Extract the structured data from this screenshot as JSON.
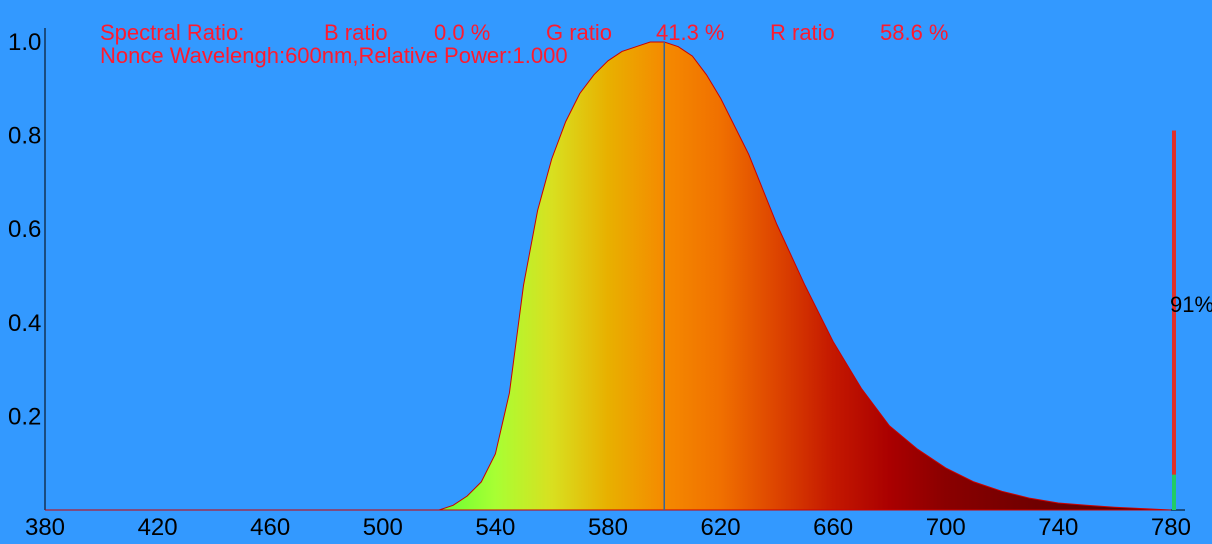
{
  "header": {
    "spectral_label": "Spectral Ratio:",
    "b_label": "B ratio",
    "b_value": "0.0 %",
    "g_label": "G ratio",
    "g_value": "41.3 %",
    "r_label": "R ratio",
    "r_value": "58.6 %",
    "line2": "Nonce Wavelengh:600nm,Relative Power:1.000"
  },
  "colors": {
    "background": "#3399ff",
    "header_text": "#ff1a2e",
    "curve_outline": "#cc0000",
    "marker_line": "#336699",
    "side_bar_red": "#e0302a",
    "side_bar_green": "#22cc66"
  },
  "side_bar": {
    "label": "91%",
    "level": 0.91,
    "green_level": 0.08
  },
  "chart_data": {
    "type": "area",
    "xlim": [
      380,
      785
    ],
    "ylim": [
      0,
      1.03
    ],
    "xticks": [
      "380",
      "420",
      "460",
      "500",
      "540",
      "580",
      "620",
      "660",
      "700",
      "740",
      "780"
    ],
    "yticks": [
      "0.2",
      "0.4",
      "0.6",
      "0.8",
      "1.0"
    ],
    "xtick_values": [
      380,
      420,
      460,
      500,
      540,
      580,
      620,
      660,
      700,
      740,
      780
    ],
    "ytick_values": [
      0.2,
      0.4,
      0.6,
      0.8,
      1.0
    ],
    "peak_wavelength": 600,
    "peak_power": 1.0,
    "x": [
      380,
      500,
      520,
      525,
      530,
      535,
      540,
      545,
      550,
      555,
      560,
      565,
      570,
      575,
      580,
      585,
      590,
      595,
      600,
      605,
      610,
      615,
      620,
      630,
      640,
      650,
      660,
      670,
      680,
      690,
      700,
      710,
      720,
      730,
      740,
      750,
      760,
      770,
      780
    ],
    "y": [
      0,
      0,
      0.0,
      0.01,
      0.03,
      0.06,
      0.12,
      0.25,
      0.48,
      0.64,
      0.75,
      0.83,
      0.89,
      0.93,
      0.96,
      0.98,
      0.99,
      1.0,
      1.0,
      0.99,
      0.97,
      0.93,
      0.88,
      0.76,
      0.61,
      0.48,
      0.36,
      0.26,
      0.18,
      0.13,
      0.09,
      0.06,
      0.04,
      0.025,
      0.015,
      0.01,
      0.006,
      0.003,
      0.0
    ],
    "grid": false
  }
}
